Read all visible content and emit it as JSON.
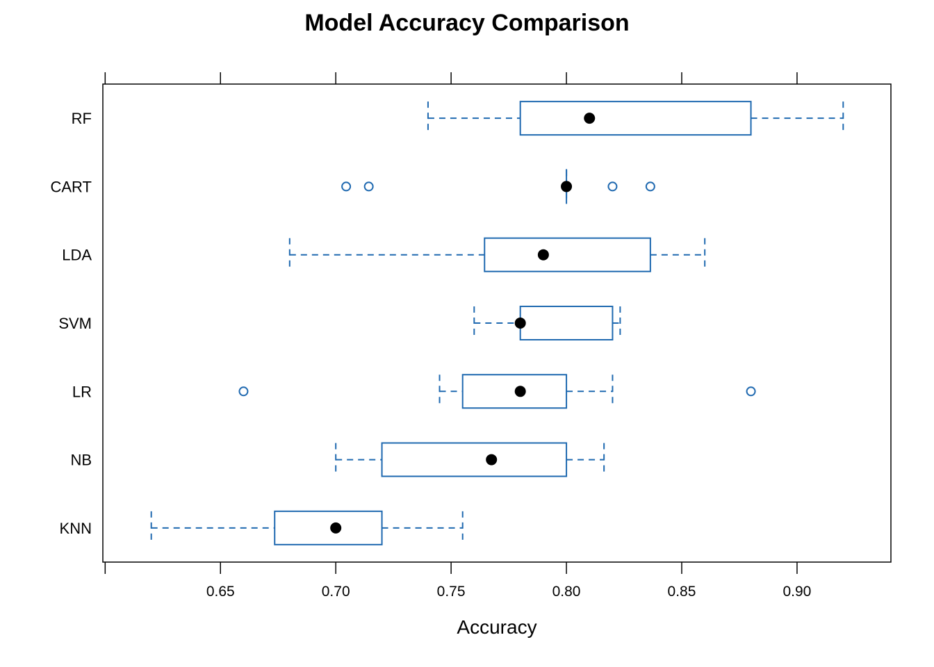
{
  "chart_data": {
    "type": "boxplot",
    "title": "Model Accuracy Comparison",
    "xlabel": "Accuracy",
    "ylabel": "",
    "xlim": [
      0.599,
      0.9407
    ],
    "x_ticks": [
      0.6,
      0.65,
      0.7,
      0.75,
      0.8,
      0.85,
      0.9
    ],
    "x_tick_labels": [
      "",
      "0.65",
      "0.70",
      "0.75",
      "0.80",
      "0.85",
      "0.90"
    ],
    "color": "#1f69b0",
    "median_color": "#000000",
    "categories": [
      "RF",
      "CART",
      "LDA",
      "SVM",
      "LR",
      "NB",
      "KNN"
    ],
    "series": [
      {
        "name": "RF",
        "whisker_low": 0.74,
        "q1": 0.78,
        "median": 0.81,
        "q3": 0.88,
        "whisker_high": 0.92,
        "outliers": []
      },
      {
        "name": "CART",
        "whisker_low": 0.8,
        "q1": 0.8,
        "median": 0.8,
        "q3": 0.8,
        "whisker_high": 0.8,
        "outliers": [
          0.7045,
          0.7143,
          0.82,
          0.8364
        ]
      },
      {
        "name": "LDA",
        "whisker_low": 0.68,
        "q1": 0.7645,
        "median": 0.79,
        "q3": 0.8364,
        "whisker_high": 0.86,
        "outliers": []
      },
      {
        "name": "SVM",
        "whisker_low": 0.76,
        "q1": 0.78,
        "median": 0.78,
        "q3": 0.82,
        "whisker_high": 0.8233,
        "outliers": []
      },
      {
        "name": "LR",
        "whisker_low": 0.745,
        "q1": 0.755,
        "median": 0.78,
        "q3": 0.8,
        "whisker_high": 0.82,
        "outliers": [
          0.66,
          0.88
        ]
      },
      {
        "name": "NB",
        "whisker_low": 0.7,
        "q1": 0.72,
        "median": 0.7675,
        "q3": 0.8,
        "whisker_high": 0.8163,
        "outliers": []
      },
      {
        "name": "KNN",
        "whisker_low": 0.62,
        "q1": 0.6735,
        "median": 0.7,
        "q3": 0.72,
        "whisker_high": 0.755,
        "outliers": []
      }
    ]
  }
}
